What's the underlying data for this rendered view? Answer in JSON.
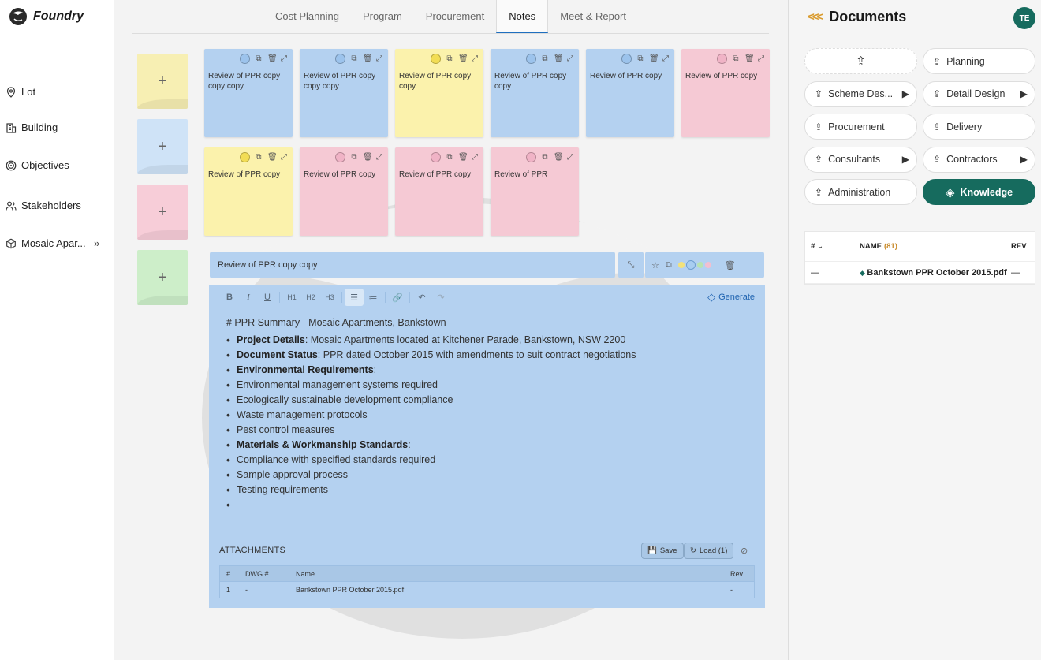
{
  "app": {
    "name": "Foundry"
  },
  "sidebar": {
    "items": [
      {
        "label": "Lot",
        "icon": "map-pin-icon"
      },
      {
        "label": "Building",
        "icon": "building-icon"
      },
      {
        "label": "Objectives",
        "icon": "target-icon"
      },
      {
        "label": "Stakeholders",
        "icon": "users-icon"
      },
      {
        "label": "Mosaic Apar...",
        "icon": "cube-icon",
        "chevron": "»"
      }
    ]
  },
  "tabs": [
    {
      "label": "Cost Planning"
    },
    {
      "label": "Program"
    },
    {
      "label": "Procurement"
    },
    {
      "label": "Notes",
      "active": true
    },
    {
      "label": "Meet & Report"
    }
  ],
  "add_tiles": {
    "symbol": "+",
    "colors": [
      "#f7efb3",
      "#cfe3f7",
      "#f7cdd8",
      "#cdeec9"
    ]
  },
  "colors": {
    "blue": "#b4d1f0",
    "yellow": "#fbf2ac",
    "pink": "#f5c9d4",
    "accent": "#166b5e",
    "tab_active": "#1f6fbf"
  },
  "notes": [
    {
      "text": "Review of PPR copy copy copy",
      "color": "blue"
    },
    {
      "text": "Review of PPR copy copy copy",
      "color": "blue"
    },
    {
      "text": "Review of PPR copy copy",
      "color": "yellow"
    },
    {
      "text": "Review of PPR copy copy",
      "color": "blue"
    },
    {
      "text": "Review of PPR copy",
      "color": "blue"
    },
    {
      "text": "Review of PPR copy",
      "color": "pink"
    },
    {
      "text": "Review of PPR copy",
      "color": "yellow"
    },
    {
      "text": "Review of PPR copy",
      "color": "pink"
    },
    {
      "text": "Review of PPR copy",
      "color": "pink"
    },
    {
      "text": "Review of PPR",
      "color": "pink"
    }
  ],
  "editor": {
    "title": "Review of PPR copy copy",
    "toolbar": [
      "B",
      "I",
      "U",
      "H1",
      "H2",
      "H3",
      "bullet-list",
      "ordered-list",
      "link",
      "undo",
      "redo"
    ],
    "generate_label": "Generate",
    "heading": "# PPR Summary - Mosaic Apartments, Bankstown",
    "lines": [
      {
        "bold": "Project Details",
        "text": ": Mosaic Apartments located at Kitchener Parade, Bankstown, NSW 2200"
      },
      {
        "bold": "Document Status",
        "text": ": PPR dated October 2015 with amendments to suit contract negotiations"
      },
      {
        "bold": "Environmental Requirements",
        "text": ":"
      },
      {
        "bold": "",
        "text": "Environmental management systems required"
      },
      {
        "bold": "",
        "text": "Ecologically sustainable development compliance"
      },
      {
        "bold": "",
        "text": "Waste management protocols"
      },
      {
        "bold": "",
        "text": "Pest control measures"
      },
      {
        "bold": "Materials & Workmanship Standards",
        "text": ":"
      },
      {
        "bold": "",
        "text": "Compliance with specified standards required"
      },
      {
        "bold": "",
        "text": "Sample approval process"
      },
      {
        "bold": "",
        "text": "Testing requirements"
      },
      {
        "bold": "",
        "text": ""
      }
    ],
    "attachments": {
      "title": "ATTACHMENTS",
      "save_label": "Save",
      "load_label": "Load (1)",
      "columns": [
        "#",
        "DWG #",
        "Name",
        "Rev"
      ],
      "rows": [
        {
          "num": "1",
          "dwg": "-",
          "name": "Bankstown PPR October 2015.pdf",
          "rev": "-"
        }
      ]
    }
  },
  "documents": {
    "title": "Documents",
    "back": "<<<",
    "avatar": "TE",
    "buttons": [
      {
        "label": "",
        "type": "upload"
      },
      {
        "label": "Planning"
      },
      {
        "label": "Scheme Des...",
        "arrow": true
      },
      {
        "label": "Detail Design",
        "arrow": true
      },
      {
        "label": "Procurement"
      },
      {
        "label": "Delivery"
      },
      {
        "label": "Consultants",
        "arrow": true
      },
      {
        "label": "Contractors",
        "arrow": true
      },
      {
        "label": "Administration"
      },
      {
        "label": "Knowledge",
        "type": "knowledge"
      }
    ],
    "table": {
      "col_num": "#",
      "col_name": "NAME",
      "count": "(81)",
      "col_rev": "REV",
      "rows": [
        {
          "num": "—",
          "name": "Bankstown PPR October 2015.pdf",
          "rev": "—"
        }
      ]
    }
  }
}
